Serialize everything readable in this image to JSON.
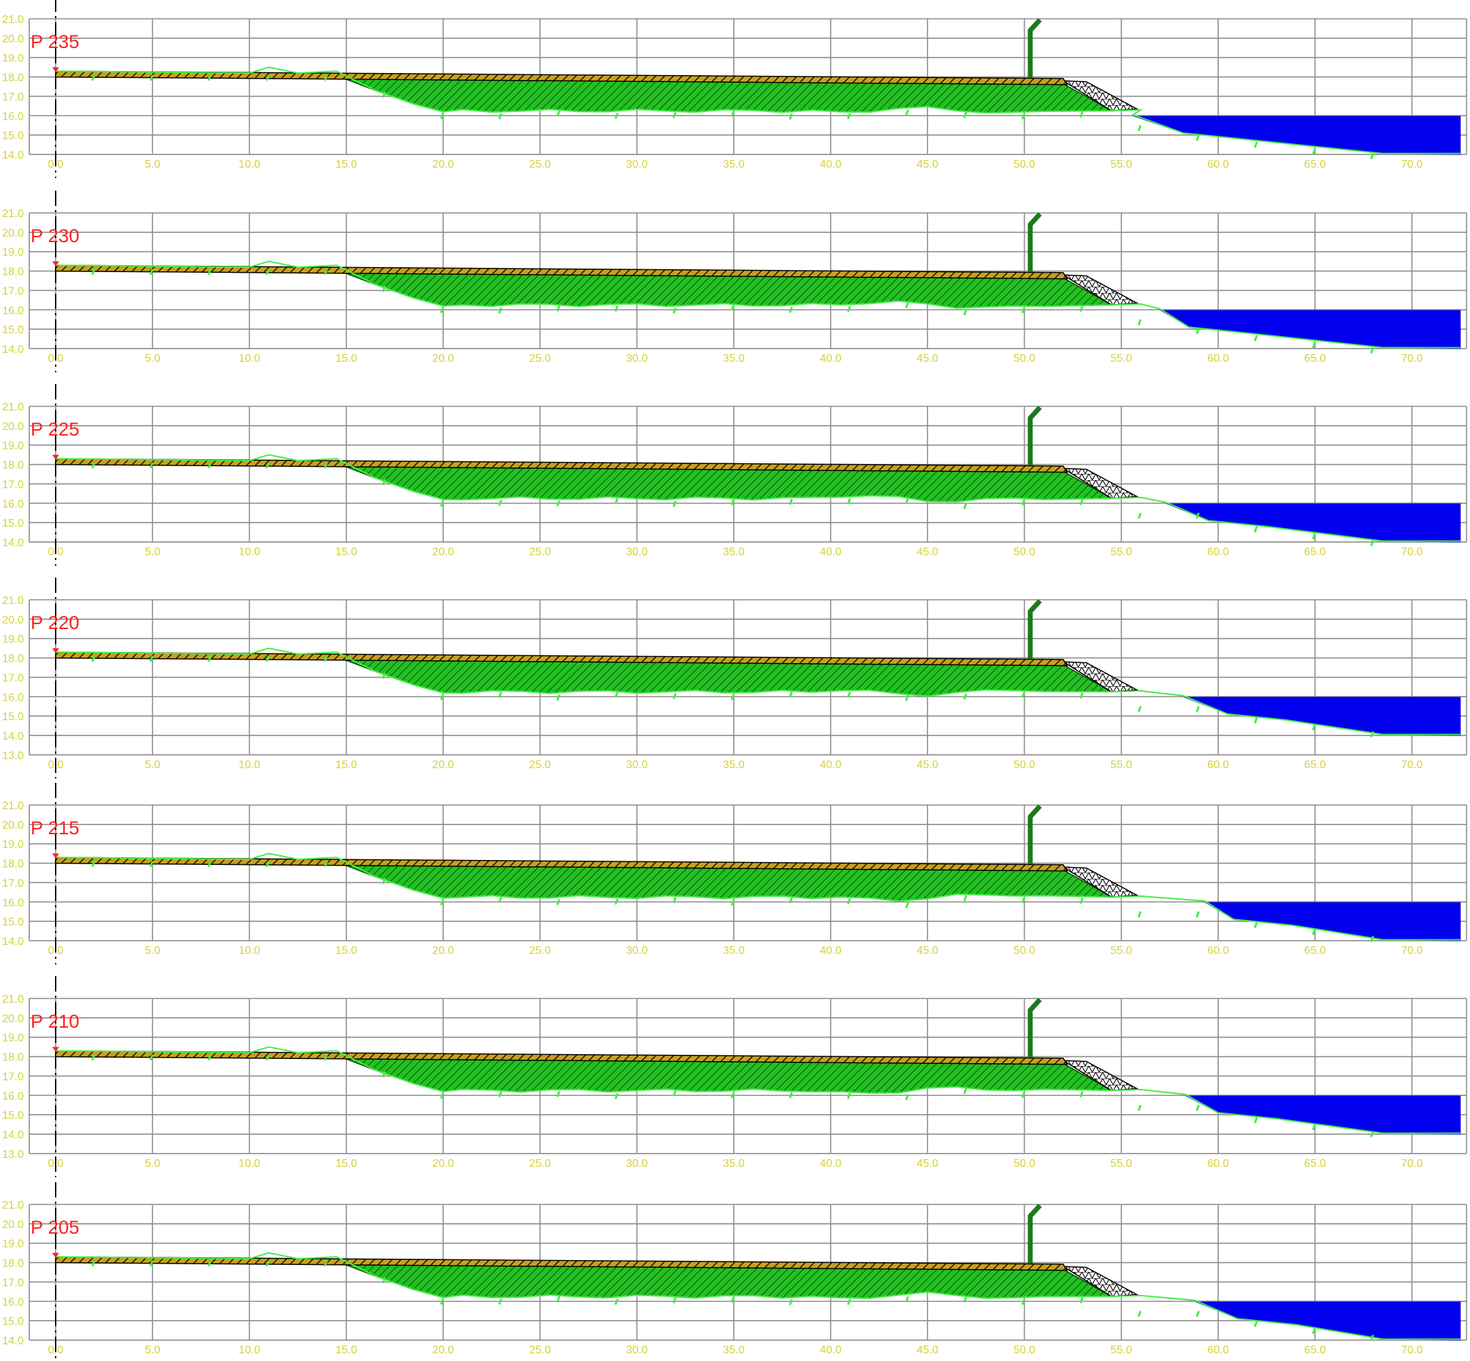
{
  "x_ticks": [
    "0.0",
    "5.0",
    "10.0",
    "15.0",
    "20.0",
    "25.0",
    "30.0",
    "35.0",
    "40.0",
    "45.0",
    "50.0",
    "55.0",
    "60.0",
    "65.0",
    "70.0"
  ],
  "colors": {
    "grid": "#8c8c8c",
    "tick_label": "#d4d23a",
    "title": "#ff2020",
    "fill_hatch": "#22c122",
    "ground_line": "#44ee44",
    "pavement": "#c8a01e",
    "riprap": "#ffffff",
    "water": "#0000ee",
    "post": "#1b7a1b",
    "axis": "#000000"
  },
  "sections": [
    {
      "title": "P 235",
      "y_ticks": [
        "21.0",
        "20.0",
        "19.0",
        "18.0",
        "17.0",
        "16.0",
        "15.0",
        "14.0"
      ],
      "y_min": 14,
      "y_max": 21,
      "water_start": 55.6,
      "water_level": 16.0,
      "bottom_start": 58.2
    },
    {
      "title": "P 230",
      "y_ticks": [
        "21.0",
        "20.0",
        "19.0",
        "18.0",
        "17.0",
        "16.0",
        "15.0",
        "14.0"
      ],
      "y_min": 14,
      "y_max": 21,
      "water_start": 57.0,
      "water_level": 16.0,
      "bottom_start": 58.5
    },
    {
      "title": "P 225",
      "y_ticks": [
        "21.0",
        "20.0",
        "19.0",
        "18.0",
        "17.0",
        "16.0",
        "15.0",
        "14.0"
      ],
      "y_min": 14,
      "y_max": 21,
      "water_start": 57.3,
      "water_level": 16.0,
      "bottom_start": 59.5
    },
    {
      "title": "P 220",
      "y_ticks": [
        "21.0",
        "20.0",
        "19.0",
        "18.0",
        "17.0",
        "16.0",
        "15.0",
        "14.0",
        "13.0"
      ],
      "y_min": 13,
      "y_max": 21,
      "water_start": 58.2,
      "water_level": 16.0,
      "bottom_start": 60.5
    },
    {
      "title": "P 215",
      "y_ticks": [
        "21.0",
        "20.0",
        "19.0",
        "18.0",
        "17.0",
        "16.0",
        "15.0",
        "14.0"
      ],
      "y_min": 14,
      "y_max": 21,
      "water_start": 59.3,
      "water_level": 16.0,
      "bottom_start": 60.8
    },
    {
      "title": "P 210",
      "y_ticks": [
        "21.0",
        "20.0",
        "19.0",
        "18.0",
        "17.0",
        "16.0",
        "15.0",
        "14.0",
        "13.0"
      ],
      "y_min": 13,
      "y_max": 21,
      "water_start": 58.3,
      "water_level": 16.0,
      "bottom_start": 60.0
    },
    {
      "title": "P 205",
      "y_ticks": [
        "21.0",
        "20.0",
        "19.0",
        "18.0",
        "17.0",
        "16.0",
        "15.0",
        "14.0"
      ],
      "y_min": 14,
      "y_max": 21,
      "water_start": 58.8,
      "water_level": 16.0,
      "bottom_start": 61.0
    }
  ]
}
